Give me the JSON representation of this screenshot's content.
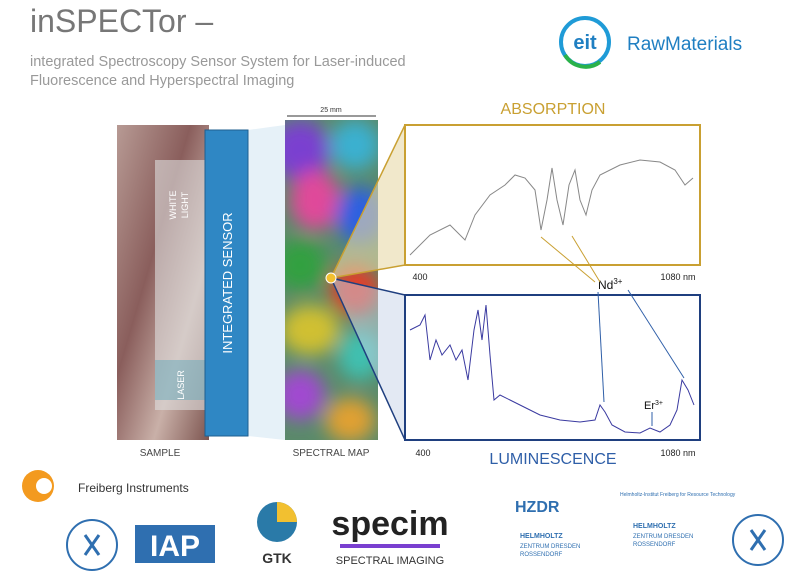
{
  "header": {
    "title": "inSPECTor –",
    "subtitle_lines": [
      "integrated Spectroscopy Sensor System for Laser-induced",
      "Fluorescence and Hyperspectral Imaging"
    ]
  },
  "partner_logo": {
    "mark": "eit",
    "name": "RawMaterials"
  },
  "setup": {
    "sample_label": "SAMPLE",
    "white_light": [
      "WHITE",
      "LIGHT"
    ],
    "laser": "LASER",
    "sensor": "INTEGRATED SENSOR",
    "scale": "25 mm",
    "map_label": "SPECTRAL MAP"
  },
  "absorption": {
    "title": "ABSORPTION",
    "x_start": "400",
    "x_end": "1080 nm"
  },
  "luminescence": {
    "title": "LUMINESCENCE",
    "x_start": "400",
    "x_end": "1080 nm"
  },
  "ions": [
    {
      "symbol": "Nd",
      "charge": "3+"
    },
    {
      "symbol": "Er",
      "charge": "3+"
    }
  ],
  "logos": {
    "freiberg": "Freiberg Instruments",
    "iap": "IAP",
    "gtk": "GTK",
    "specim": "specim",
    "specim_tag": "SPECTRAL IMAGING",
    "hzdr": "HZDR",
    "helmholtz": "HELMHOLTZ",
    "hzdr_name": [
      "ZENTRUM DRESDEN",
      "ROSSENDORF"
    ],
    "hif": "Helmholtz-Institut Freiberg for Resource Technology"
  }
}
